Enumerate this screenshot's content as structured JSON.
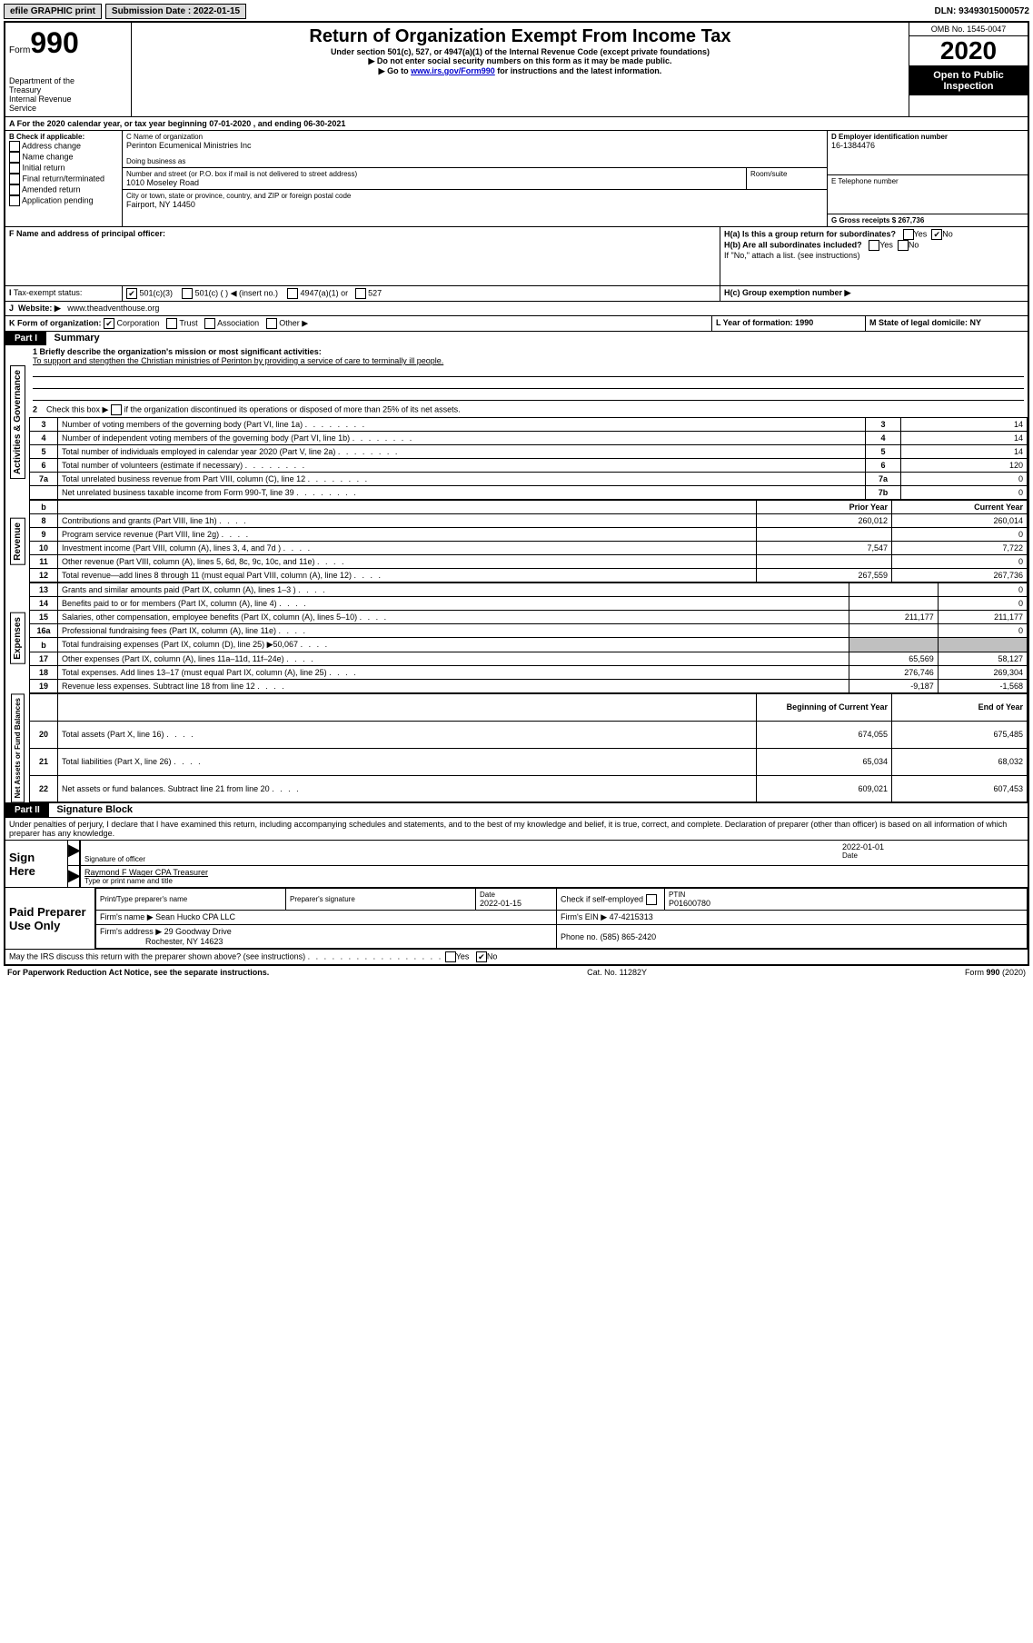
{
  "topbar": {
    "efile": "efile GRAPHIC print",
    "submission_label": "Submission Date : 2022-01-15",
    "dln_label": "DLN: 93493015000572"
  },
  "header": {
    "form_label": "Form",
    "form_number": "990",
    "dept": "Department of the Treasury\nInternal Revenue Service",
    "title": "Return of Organization Exempt From Income Tax",
    "subtitle": "Under section 501(c), 527, or 4947(a)(1) of the Internal Revenue Code (except private foundations)",
    "note1": "Do not enter social security numbers on this form as it may be made public.",
    "note2_pre": "Go to ",
    "note2_link": "www.irs.gov/Form990",
    "note2_post": " for instructions and the latest information.",
    "omb": "OMB No. 1545-0047",
    "year": "2020",
    "inspection": "Open to Public Inspection"
  },
  "lineA": "For the 2020 calendar year, or tax year beginning 07-01-2020    , and ending 06-30-2021",
  "boxB": {
    "label": "B Check if applicable:",
    "opts": [
      "Address change",
      "Name change",
      "Initial return",
      "Final return/terminated",
      "Amended return",
      "Application pending"
    ]
  },
  "boxC": {
    "name_label": "C Name of organization",
    "name": "Perinton Ecumenical Ministries Inc",
    "dba_label": "Doing business as",
    "addr_label": "Number and street (or P.O. box if mail is not delivered to street address)",
    "room_label": "Room/suite",
    "addr": "1010 Moseley Road",
    "city_label": "City or town, state or province, country, and ZIP or foreign postal code",
    "city": "Fairport, NY  14450"
  },
  "boxD": {
    "label": "D Employer identification number",
    "value": "16-1384476"
  },
  "boxE": {
    "label": "E Telephone number",
    "value": ""
  },
  "boxG": {
    "label": "G Gross receipts $ 267,736"
  },
  "boxF": {
    "label": "F  Name and address of principal officer:"
  },
  "boxH": {
    "a": "H(a)  Is this a group return for subordinates?",
    "b": "H(b)  Are all subordinates included?",
    "b_note": "If \"No,\" attach a list. (see instructions)",
    "c": "H(c)  Group exemption number ▶",
    "yes": "Yes",
    "no": "No"
  },
  "taxExempt": {
    "label": "Tax-exempt status:",
    "opts": [
      "501(c)(3)",
      "501(c) (  ) ◀ (insert no.)",
      "4947(a)(1) or",
      "527"
    ]
  },
  "website": {
    "label": "Website: ▶",
    "value": "www.theadventhouse.org"
  },
  "lineK": {
    "label": "K Form of organization:",
    "opts": [
      "Corporation",
      "Trust",
      "Association",
      "Other ▶"
    ]
  },
  "lineL": {
    "label": "L Year of formation: 1990"
  },
  "lineM": {
    "label": "M State of legal domicile: NY"
  },
  "part1": {
    "header": "Part I",
    "title": "Summary"
  },
  "summary": {
    "q1_label": "1  Briefly describe the organization's mission or most significant activities:",
    "q1_text": "To support and stengthen the Christian ministries of Perinton by providing a service of care to terminally ill people.",
    "q2": "2    Check this box ▶ if the organization discontinued its operations or disposed of more than 25% of its net assets.",
    "rows_ag": [
      {
        "n": "3",
        "t": "Number of voting members of the governing body (Part VI, line 1a)",
        "c": "3",
        "v": "14"
      },
      {
        "n": "4",
        "t": "Number of independent voting members of the governing body (Part VI, line 1b)",
        "c": "4",
        "v": "14"
      },
      {
        "n": "5",
        "t": "Total number of individuals employed in calendar year 2020 (Part V, line 2a)",
        "c": "5",
        "v": "14"
      },
      {
        "n": "6",
        "t": "Total number of volunteers (estimate if necessary)",
        "c": "6",
        "v": "120"
      },
      {
        "n": "7a",
        "t": "Total unrelated business revenue from Part VIII, column (C), line 12",
        "c": "7a",
        "v": "0"
      },
      {
        "n": "",
        "t": "Net unrelated business taxable income from Form 990-T, line 39",
        "c": "7b",
        "v": "0"
      }
    ],
    "col_head": {
      "b": "b",
      "prior": "Prior Year",
      "current": "Current Year"
    },
    "rows_rev": [
      {
        "n": "8",
        "t": "Contributions and grants (Part VIII, line 1h)",
        "p": "260,012",
        "c": "260,014"
      },
      {
        "n": "9",
        "t": "Program service revenue (Part VIII, line 2g)",
        "p": "",
        "c": "0"
      },
      {
        "n": "10",
        "t": "Investment income (Part VIII, column (A), lines 3, 4, and 7d )",
        "p": "7,547",
        "c": "7,722"
      },
      {
        "n": "11",
        "t": "Other revenue (Part VIII, column (A), lines 5, 6d, 8c, 9c, 10c, and 11e)",
        "p": "",
        "c": "0"
      },
      {
        "n": "12",
        "t": "Total revenue—add lines 8 through 11 (must equal Part VIII, column (A), line 12)",
        "p": "267,559",
        "c": "267,736"
      }
    ],
    "rows_exp": [
      {
        "n": "13",
        "t": "Grants and similar amounts paid (Part IX, column (A), lines 1–3 )",
        "p": "",
        "c": "0"
      },
      {
        "n": "14",
        "t": "Benefits paid to or for members (Part IX, column (A), line 4)",
        "p": "",
        "c": "0"
      },
      {
        "n": "15",
        "t": "Salaries, other compensation, employee benefits (Part IX, column (A), lines 5–10)",
        "p": "211,177",
        "c": "211,177"
      },
      {
        "n": "16a",
        "t": "Professional fundraising fees (Part IX, column (A), line 11e)",
        "p": "",
        "c": "0"
      },
      {
        "n": "b",
        "t": "Total fundraising expenses (Part IX, column (D), line 25) ▶50,067",
        "p": "shade",
        "c": "shade"
      },
      {
        "n": "17",
        "t": "Other expenses (Part IX, column (A), lines 11a–11d, 11f–24e)",
        "p": "65,569",
        "c": "58,127"
      },
      {
        "n": "18",
        "t": "Total expenses. Add lines 13–17 (must equal Part IX, column (A), line 25)",
        "p": "276,746",
        "c": "269,304"
      },
      {
        "n": "19",
        "t": "Revenue less expenses. Subtract line 18 from line 12",
        "p": "-9,187",
        "c": "-1,568"
      }
    ],
    "col_head2": {
      "prior": "Beginning of Current Year",
      "current": "End of Year"
    },
    "rows_net": [
      {
        "n": "20",
        "t": "Total assets (Part X, line 16)",
        "p": "674,055",
        "c": "675,485"
      },
      {
        "n": "21",
        "t": "Total liabilities (Part X, line 26)",
        "p": "65,034",
        "c": "68,032"
      },
      {
        "n": "22",
        "t": "Net assets or fund balances. Subtract line 21 from line 20",
        "p": "609,021",
        "c": "607,453"
      }
    ]
  },
  "sidebars": {
    "ag": "Activities & Governance",
    "rev": "Revenue",
    "exp": "Expenses",
    "net": "Net Assets or Fund Balances"
  },
  "part2": {
    "header": "Part II",
    "title": "Signature Block",
    "declaration": "Under penalties of perjury, I declare that I have examined this return, including accompanying schedules and statements, and to the best of my knowledge and belief, it is true, correct, and complete. Declaration of preparer (other than officer) is based on all information of which preparer has any knowledge."
  },
  "sign": {
    "label": "Sign Here",
    "sig_label": "Signature of officer",
    "date_label": "Date",
    "date": "2022-01-01",
    "name": "Raymond F Wager CPA  Treasurer",
    "name_label": "Type or print name and title"
  },
  "preparer": {
    "label": "Paid Preparer Use Only",
    "print_label": "Print/Type preparer's name",
    "sig_label": "Preparer's signature",
    "date_label": "Date",
    "date": "2022-01-15",
    "check_label": "Check         if self-employed",
    "ptin_label": "PTIN",
    "ptin": "P01600780",
    "firm_name_label": "Firm's name    ▶",
    "firm_name": "Sean Hucko CPA LLC",
    "firm_ein_label": "Firm's EIN ▶",
    "firm_ein": "47-4215313",
    "firm_addr_label": "Firm's address ▶",
    "firm_addr": "29 Goodway Drive",
    "firm_city": "Rochester, NY  14623",
    "phone_label": "Phone no.",
    "phone": "(585) 865-2420",
    "irs_q": "May the IRS discuss this return with the preparer shown above? (see instructions)"
  },
  "footer": {
    "left": "For Paperwork Reduction Act Notice, see the separate instructions.",
    "center": "Cat. No. 11282Y",
    "right": "Form 990 (2020)"
  }
}
